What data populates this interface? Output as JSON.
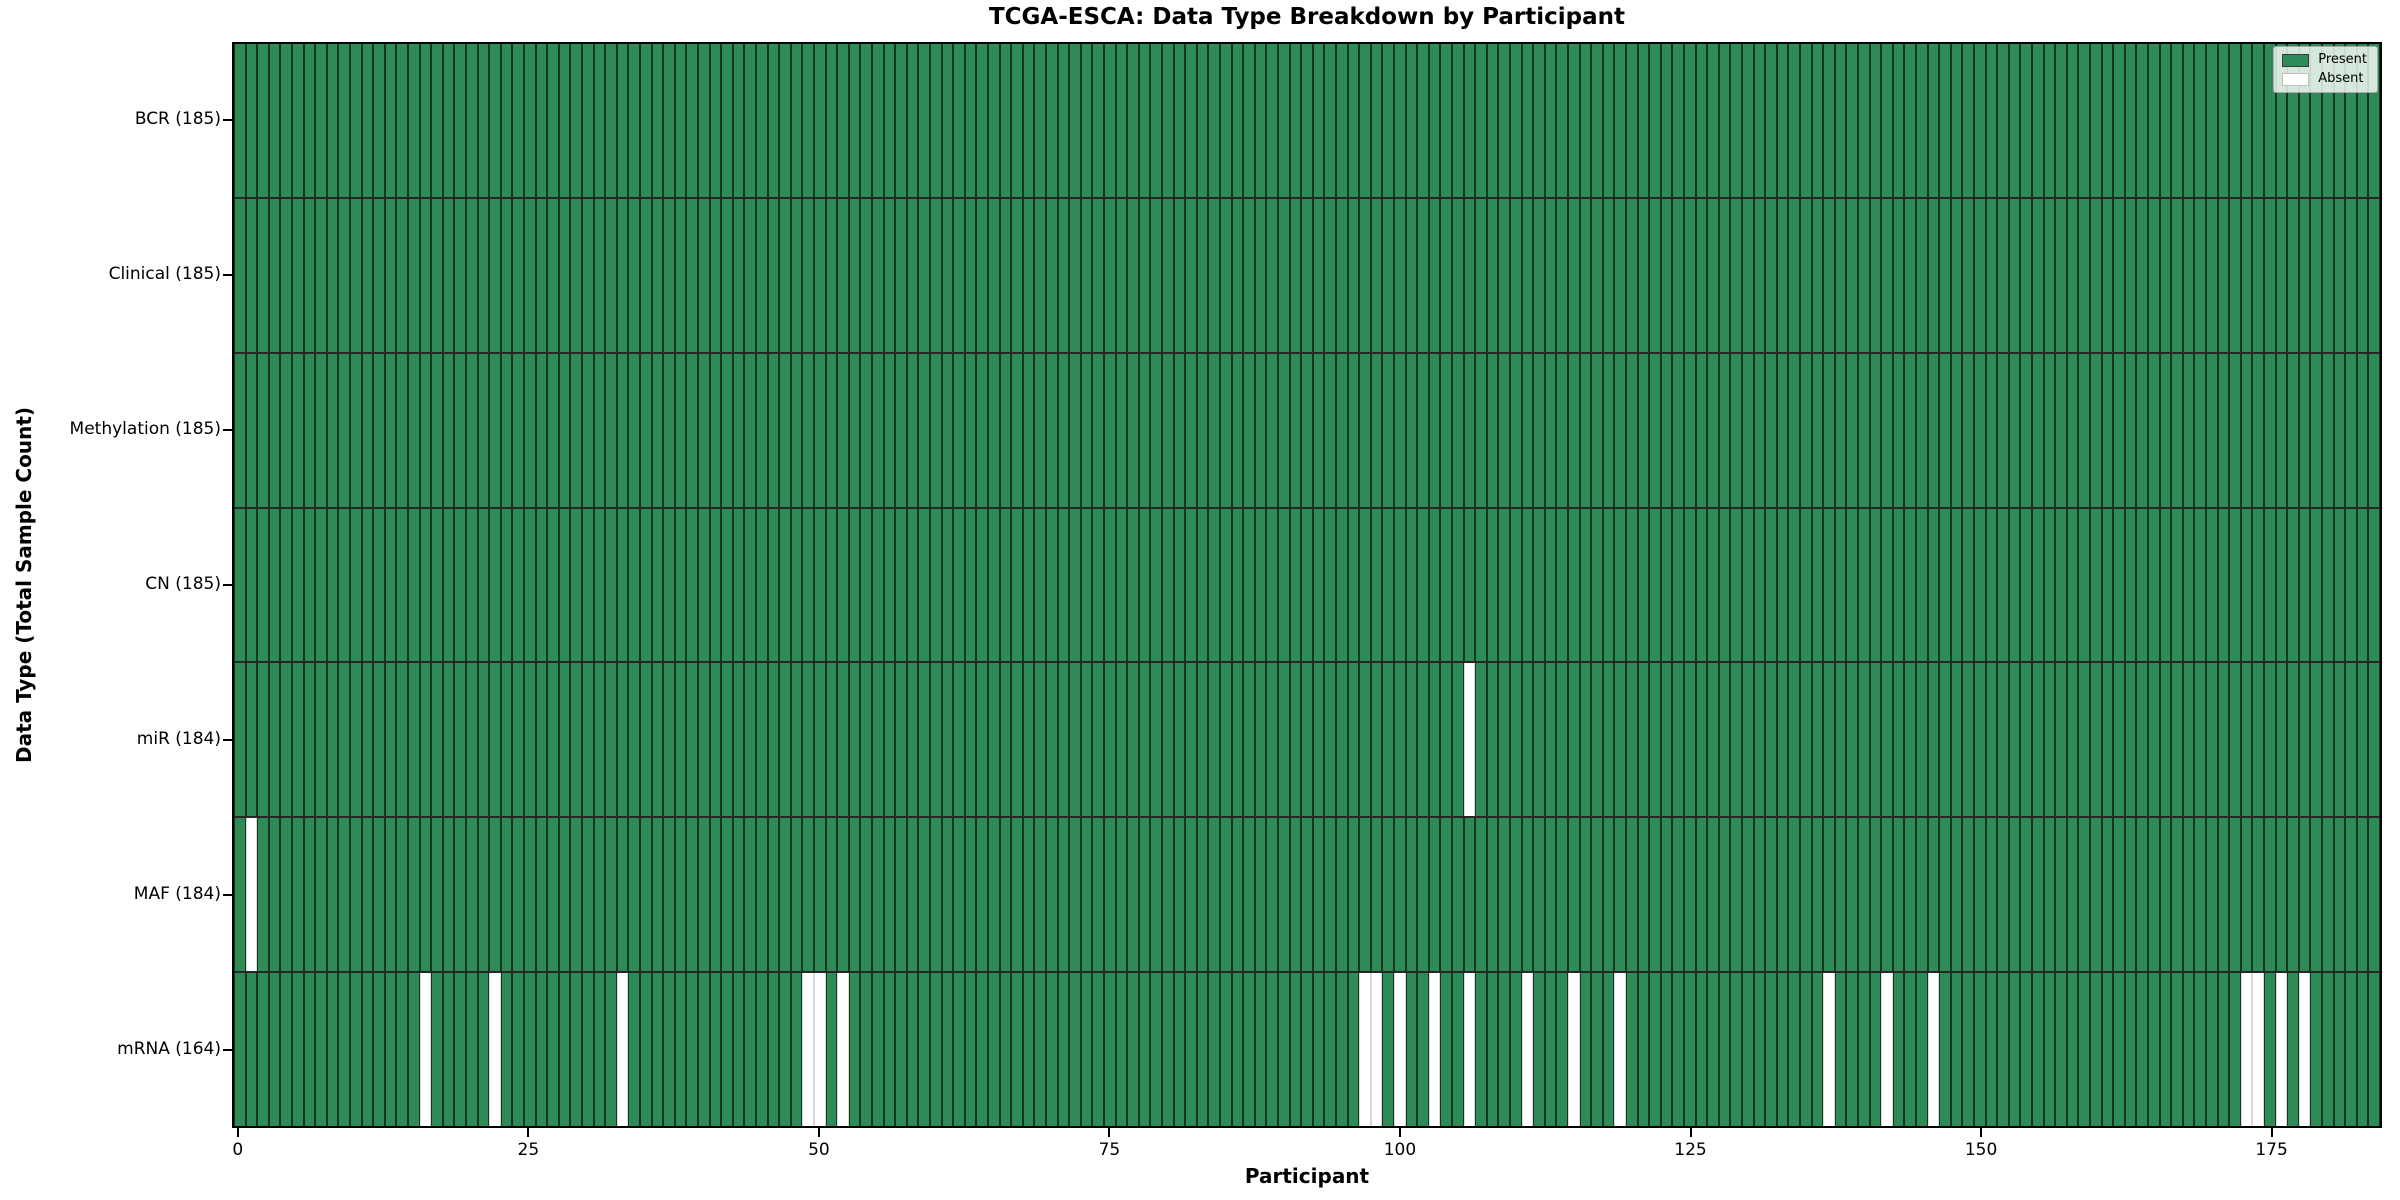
{
  "title": "TCGA-ESCA: Data Type Breakdown by Participant",
  "x_axis_label": "Participant",
  "y_axis_label": "Data Type (Total Sample Count)",
  "legend": {
    "present_label": "Present",
    "absent_label": "Absent"
  },
  "colors": {
    "present": "#2e8b57",
    "absent": "#ffffff",
    "edge": "#1a1a1a"
  },
  "chart_data": {
    "type": "heatmap",
    "title": "TCGA-ESCA: Data Type Breakdown by Participant",
    "xlabel": "Participant",
    "ylabel": "Data Type (Total Sample Count)",
    "n_participants": 185,
    "x_ticks": [
      0,
      25,
      50,
      75,
      100,
      125,
      150,
      175
    ],
    "xlim": [
      -0.5,
      184.5
    ],
    "grid": false,
    "legend_position": "upper right",
    "legend_entries": [
      {
        "label": "Present",
        "color": "#2e8b57"
      },
      {
        "label": "Absent",
        "color": "#ffffff"
      }
    ],
    "rows": [
      {
        "name": "BCR",
        "label": "BCR (185)",
        "total_sample_count": 185,
        "absent_participants": []
      },
      {
        "name": "Clinical",
        "label": "Clinical (185)",
        "total_sample_count": 185,
        "absent_participants": []
      },
      {
        "name": "Methylation",
        "label": "Methylation (185)",
        "total_sample_count": 185,
        "absent_participants": []
      },
      {
        "name": "CN",
        "label": "CN (185)",
        "total_sample_count": 185,
        "absent_participants": []
      },
      {
        "name": "miR",
        "label": "miR (184)",
        "total_sample_count": 184,
        "absent_participants": [
          106
        ]
      },
      {
        "name": "MAF",
        "label": "MAF (184)",
        "total_sample_count": 184,
        "absent_participants": [
          1
        ]
      },
      {
        "name": "mRNA",
        "label": "mRNA (164)",
        "total_sample_count": 164,
        "absent_participants": [
          16,
          22,
          33,
          49,
          50,
          52,
          97,
          98,
          100,
          103,
          106,
          111,
          115,
          119,
          137,
          142,
          146,
          173,
          174,
          176,
          178
        ]
      }
    ]
  }
}
